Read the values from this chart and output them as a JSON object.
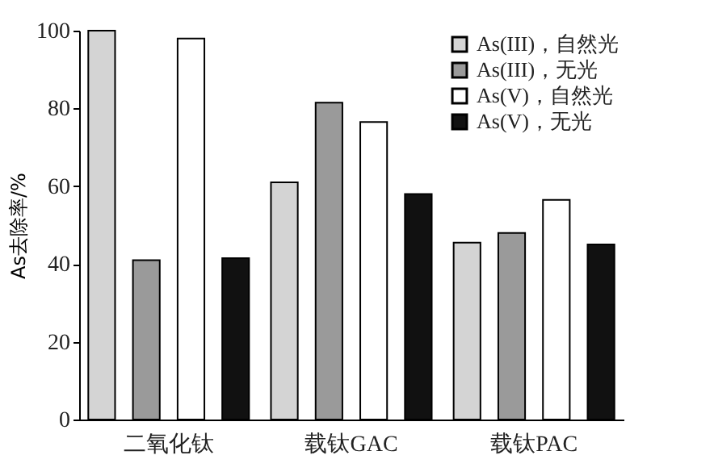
{
  "chart_data": {
    "type": "bar",
    "ylabel": "As去除率/%",
    "categories": [
      "二氧化钛",
      "载钛GAC",
      "载钛PAC"
    ],
    "series": [
      {
        "name": "As(III)，自然光",
        "color": "#d4d4d4",
        "values": [
          100,
          61,
          45.5
        ]
      },
      {
        "name": "As(III)，无光",
        "color": "#9a9a9a",
        "values": [
          41,
          81.5,
          48
        ]
      },
      {
        "name": "As(V)，自然光",
        "color": "#ffffff",
        "values": [
          98,
          76.5,
          56.5
        ]
      },
      {
        "name": "As(V)，无光",
        "color": "#111111",
        "values": [
          41.5,
          58,
          45
        ]
      }
    ],
    "ylim": [
      0,
      100
    ],
    "yticks": [
      0,
      20,
      40,
      60,
      80,
      100
    ],
    "grid": false,
    "legend": "top right"
  }
}
